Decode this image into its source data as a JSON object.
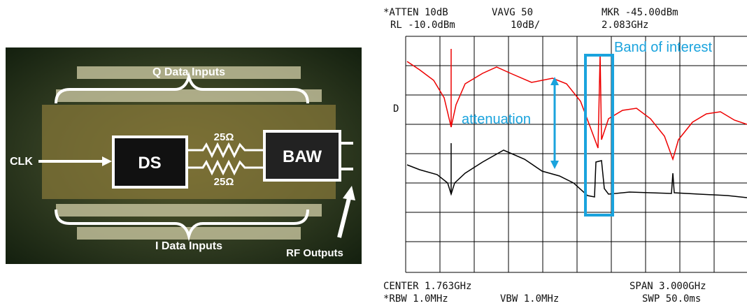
{
  "photo": {
    "labels": {
      "q_inputs": "Q Data Inputs",
      "clk": "CLK",
      "ds": "DS",
      "r_top": "25Ω",
      "r_bottom": "25Ω",
      "baw": "BAW",
      "i_inputs": "I Data Inputs",
      "rf_outputs": "RF Outputs"
    }
  },
  "analyzer": {
    "header": {
      "atten": "*ATTEN 10dB",
      "vavg": "VAVG 50",
      "mkr": "MKR -45.00dBm",
      "rl": "RL -10.0dBm",
      "scale": "10dB/",
      "mkr_freq": "2.083GHz"
    },
    "side_label": "D",
    "annotations": {
      "band": "Band of interest",
      "attenuation": "attenuation"
    },
    "footer": {
      "center": "CENTER 1.763GHz",
      "span": "SPAN 3.000GHz",
      "rbw": "*RBW 1.0MHz",
      "vbw": "VBW 1.0MHz",
      "swp": "SWP 50.0ms"
    }
  }
}
